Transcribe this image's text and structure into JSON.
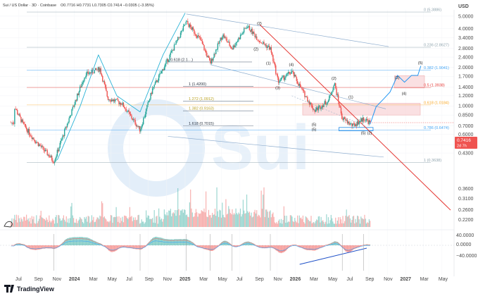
{
  "header": {
    "title": "Sui / US Dollar · 3D · Coinbase",
    "ohlc": "O0.7716  H0.7731  L0.7305  C0.7414  −0.0305 (−3.95%)"
  },
  "currency": "USD",
  "brand": "TradingView",
  "watermark": "Sui",
  "price_badge": {
    "price": "0.7416",
    "countdown": "2d 7h"
  },
  "volume_labels": [
    "0.3600",
    "0.3100",
    "0.2600",
    "0.2200"
  ],
  "macd_labels": [
    "40.0000",
    "0.0000",
    "−40.0000"
  ],
  "colors": {
    "up": "#26a69a",
    "down": "#ef5350",
    "trend": "#e53935",
    "curve": "#2bb3d6",
    "forecast": "#2196f3",
    "fib": "#9aa7b8"
  },
  "chart_data": {
    "type": "candlestick",
    "ylim": [
      0.18,
      5.6
    ],
    "y_scale": "log",
    "yticks": [
      5.0,
      4.0,
      3.4,
      2.8,
      2.4,
      2.0,
      1.7,
      1.4,
      1.2,
      1.0,
      0.85,
      0.7,
      0.6,
      0.5,
      0.43
    ],
    "ytick_labels": [
      "5.0000",
      "4.0000",
      "3.4000",
      "2.8000",
      "2.4000",
      "2.0000",
      "1.7000",
      "1.4000",
      "1.2000",
      "1.0000",
      "0.8500",
      "0.7000",
      "0.6000",
      "0.5000",
      "0.4300"
    ],
    "xlabels": [
      "Jul",
      "Sep",
      "Nov",
      "2024",
      "Mar",
      "May",
      "Jul",
      "Sep",
      "Nov",
      "2025",
      "Mar",
      "May",
      "Jul",
      "Sep",
      "Nov",
      "2026",
      "Mar",
      "May",
      "Jul",
      "Sep",
      "Nov",
      "2027",
      "Mar",
      "May"
    ],
    "price_path": [
      [
        "2023-06-15",
        1.0
      ],
      [
        "2023-07-15",
        0.72
      ],
      [
        "2023-08-20",
        0.55
      ],
      [
        "2023-10-05",
        0.42
      ],
      [
        "2023-10-25",
        0.37
      ],
      [
        "2023-12-10",
        0.75
      ],
      [
        "2024-01-10",
        1.2
      ],
      [
        "2024-02-05",
        1.75
      ],
      [
        "2024-03-25",
        1.95
      ],
      [
        "2024-04-20",
        1.15
      ],
      [
        "2024-06-05",
        1.05
      ],
      [
        "2024-08-05",
        0.65
      ],
      [
        "2024-09-15",
        1.35
      ],
      [
        "2024-11-05",
        2.3
      ],
      [
        "2024-12-05",
        3.2
      ],
      [
        "2025-01-05",
        4.5
      ],
      [
        "2025-02-20",
        3.3
      ],
      [
        "2025-03-25",
        2.15
      ],
      [
        "2025-05-05",
        3.6
      ],
      [
        "2025-06-05",
        2.8
      ],
      [
        "2025-07-25",
        4.2
      ],
      [
        "2025-09-05",
        3.2
      ],
      [
        "2025-10-10",
        2.8
      ],
      [
        "2025-11-05",
        1.55
      ],
      [
        "2025-12-20",
        1.85
      ],
      [
        "2026-01-25",
        1.3
      ],
      [
        "2026-03-05",
        0.92
      ],
      [
        "2026-04-20",
        1.1
      ],
      [
        "2026-05-10",
        1.5
      ],
      [
        "2026-06-05",
        0.8
      ],
      [
        "2026-07-10",
        0.7
      ],
      [
        "2026-08-15",
        0.8
      ],
      [
        "2026-09-05",
        0.7414
      ]
    ],
    "forecast_path": [
      [
        "2026-09-05",
        0.72
      ],
      [
        "2026-09-25",
        1.0
      ],
      [
        "2026-10-20",
        1.15
      ],
      [
        "2026-11-10",
        1.3
      ],
      [
        "2026-12-05",
        1.75
      ],
      [
        "2026-12-28",
        1.55
      ],
      [
        "2027-01-20",
        1.75
      ],
      [
        "2027-02-10",
        1.75
      ],
      [
        "2027-02-20",
        2.05
      ]
    ],
    "fib_levels": [
      {
        "label": "0 (5.3886)",
        "value": 5.3886,
        "color": "#90a4ae"
      },
      {
        "label": "0.236 (2.8627)",
        "value": 2.8627,
        "color": "#90a4ae"
      },
      {
        "label": "0.382 (1.9041)",
        "value": 1.9041,
        "color": "#42a5f5"
      },
      {
        "label": "0.5 (1.3938)",
        "value": 1.3938,
        "color": "#e53935"
      },
      {
        "label": "0.618 (1.0184)",
        "value": 1.0184,
        "color": "#f9a825"
      },
      {
        "label": "0.786 (0.6474)",
        "value": 0.6474,
        "color": "#42a5f5"
      },
      {
        "label": "1 (0.3638)",
        "value": 0.3638,
        "color": "#90a4ae"
      }
    ],
    "ext_levels": [
      {
        "label": "0.618 (2.1…)",
        "value": 2.2
      },
      {
        "label": "1 (1.4200)",
        "value": 1.42
      },
      {
        "label": "1.272 (1.0912)",
        "value": 1.0912
      },
      {
        "label": "1.382 (0.9163)",
        "value": 0.9163
      },
      {
        "label": "1.618 (0.7015)",
        "value": 0.7015
      }
    ],
    "waves": [
      {
        "t": "(2)",
        "d": "2025-09-05",
        "v": 4.3
      },
      {
        "t": "(2)",
        "d": "2025-08-25",
        "v": 2.7
      },
      {
        "t": "(1)",
        "d": "2025-10-05",
        "v": 2.1
      },
      {
        "t": "(3)",
        "d": "2025-11-05",
        "v": 1.35
      },
      {
        "t": "(4)",
        "d": "2025-12-20",
        "v": 2.05
      },
      {
        "t": "(2)",
        "d": "2026-05-10",
        "v": 1.6
      },
      {
        "t": "(1)",
        "d": "2026-07-05",
        "v": 1.15
      },
      {
        "t": "(5)",
        "d": "2026-03-05",
        "v": 0.7
      },
      {
        "t": "(5)",
        "d": "2026-03-05",
        "v": 0.64
      },
      {
        "t": "(5)",
        "d": "2026-08-15",
        "v": 0.6
      },
      {
        "t": "(2)",
        "d": "2026-09-05",
        "v": 0.6
      },
      {
        "t": "(3)",
        "d": "2026-12-05",
        "v": 1.62
      },
      {
        "t": "(4)",
        "d": "2026-12-28",
        "v": 1.22
      },
      {
        "t": "(5)",
        "d": "2027-02-20",
        "v": 2.12
      }
    ]
  }
}
